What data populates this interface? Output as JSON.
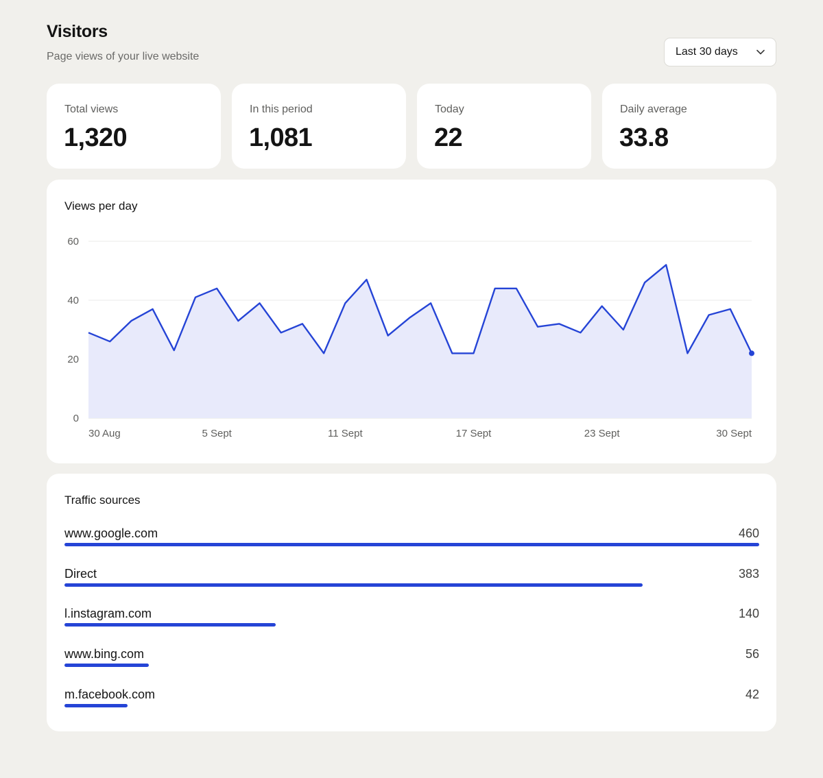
{
  "header": {
    "title": "Visitors",
    "subtitle": "Page views of your live website",
    "range_label": "Last 30 days",
    "range_icon": "chevron-down-icon"
  },
  "stats": [
    {
      "label": "Total views",
      "value": "1,320"
    },
    {
      "label": "In this period",
      "value": "1,081"
    },
    {
      "label": "Today",
      "value": "22"
    },
    {
      "label": "Daily average",
      "value": "33.8"
    }
  ],
  "chart": {
    "title": "Views per day"
  },
  "chart_data": {
    "type": "area",
    "title": "Views per day",
    "ylim": [
      0,
      60
    ],
    "y_ticks": [
      "0",
      "20",
      "40",
      "60"
    ],
    "x_tick_labels": [
      "30 Aug",
      "5 Sept",
      "11 Sept",
      "17 Sept",
      "23 Sept",
      "30 Sept"
    ],
    "x": [
      "30 Aug",
      "31 Aug",
      "1 Sept",
      "2 Sept",
      "3 Sept",
      "4 Sept",
      "5 Sept",
      "6 Sept",
      "7 Sept",
      "8 Sept",
      "9 Sept",
      "10 Sept",
      "11 Sept",
      "12 Sept",
      "13 Sept",
      "14 Sept",
      "15 Sept",
      "16 Sept",
      "17 Sept",
      "18 Sept",
      "19 Sept",
      "20 Sept",
      "21 Sept",
      "22 Sept",
      "23 Sept",
      "24 Sept",
      "25 Sept",
      "26 Sept",
      "27 Sept",
      "28 Sept",
      "29 Sept",
      "30 Sept"
    ],
    "series": [
      {
        "values": [
          29,
          26,
          33,
          37,
          23,
          41,
          44,
          33,
          39,
          29,
          32,
          22,
          39,
          47,
          28,
          34,
          39,
          22,
          22,
          44,
          44,
          31,
          32,
          29,
          38,
          30,
          46,
          52,
          22,
          35,
          37,
          22
        ]
      }
    ],
    "grid": true,
    "line_color": "#2544d6",
    "fill_color": "#e8eafb"
  },
  "traffic": {
    "title": "Traffic sources",
    "bar_color": "#2544d6",
    "sources": [
      {
        "name": "www.google.com",
        "value": 460
      },
      {
        "name": "Direct",
        "value": 383
      },
      {
        "name": "l.instagram.com",
        "value": 140
      },
      {
        "name": "www.bing.com",
        "value": 56
      },
      {
        "name": "m.facebook.com",
        "value": 42
      }
    ]
  }
}
